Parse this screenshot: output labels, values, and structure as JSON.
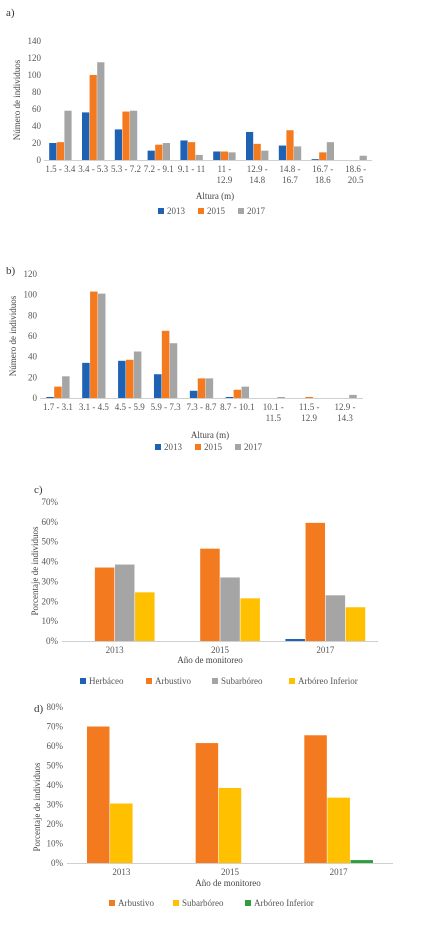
{
  "chart_data": [
    {
      "panel": "a)",
      "type": "bar",
      "ylabel": "Número de individuos",
      "xlabel": "Altura (m)",
      "ylim": [
        0,
        140
      ],
      "yticks": [
        0,
        20,
        40,
        60,
        80,
        100,
        120,
        140
      ],
      "categories": [
        "1.5 - 3.4",
        "3.4 - 5.3",
        "5.3 - 7.2",
        "7.2 - 9.1",
        "9.1 - 11",
        "11 - 12.9",
        "12.9 - 14.8",
        "14.8 - 16.7",
        "16.7 - 18.6",
        "18.6 - 20.5"
      ],
      "series": [
        {
          "name": "2013",
          "color": "#1f62b4",
          "values": [
            20,
            56,
            36,
            11,
            23,
            10,
            33,
            17,
            1,
            0
          ]
        },
        {
          "name": "2015",
          "color": "#f47a20",
          "values": [
            21,
            100,
            57,
            18,
            21,
            10,
            19,
            35,
            9,
            0
          ]
        },
        {
          "name": "2017",
          "color": "#a5a5a5",
          "values": [
            58,
            115,
            58,
            20,
            6,
            9,
            11,
            16,
            21,
            5
          ]
        }
      ]
    },
    {
      "panel": "b)",
      "type": "bar",
      "ylabel": "Número de individuos",
      "xlabel": "Altura (m)",
      "ylim": [
        0,
        120
      ],
      "yticks": [
        0,
        20,
        40,
        60,
        80,
        100,
        120
      ],
      "categories": [
        "1.7 - 3.1",
        "3.1 - 4.5",
        "4.5 - 5.9",
        "5.9 - 7.3",
        "7.3 - 8.7",
        "8.7 - 10.1",
        "10.1 - 11.5",
        "11.5 - 12.9",
        "12.9 - 14.3"
      ],
      "series": [
        {
          "name": "2013",
          "color": "#1f62b4",
          "values": [
            1,
            34,
            36,
            23,
            7,
            1,
            0,
            0,
            0
          ]
        },
        {
          "name": "2015",
          "color": "#f47a20",
          "values": [
            11,
            103,
            37,
            65,
            19,
            8,
            0,
            1,
            0
          ]
        },
        {
          "name": "2017",
          "color": "#a5a5a5",
          "values": [
            21,
            101,
            45,
            53,
            19,
            11,
            1,
            0,
            3
          ]
        }
      ]
    },
    {
      "panel": "c)",
      "type": "bar",
      "ylabel": "Porcentaje de individuos",
      "xlabel": "Año de monitoreo",
      "ylim": [
        0,
        70
      ],
      "yticks": [
        "0%",
        "10%",
        "20%",
        "30%",
        "40%",
        "50%",
        "60%",
        "70%"
      ],
      "categories": [
        "2013",
        "2015",
        "2017"
      ],
      "series": [
        {
          "name": "Herbáceo",
          "color": "#1f62b4",
          "values": [
            0,
            0,
            1
          ]
        },
        {
          "name": "Arbustivo",
          "color": "#f47a20",
          "values": [
            37,
            46.5,
            59.5
          ]
        },
        {
          "name": "Subarbóreo",
          "color": "#a5a5a5",
          "values": [
            38.5,
            32,
            23
          ]
        },
        {
          "name": "Arbóreo Inferior",
          "color": "#ffc000",
          "values": [
            24.5,
            21.5,
            17
          ]
        }
      ]
    },
    {
      "panel": "d)",
      "type": "bar",
      "ylabel": "Porcentaje de individuos",
      "xlabel": "Año de monitoreo",
      "ylim": [
        0,
        80
      ],
      "yticks": [
        "0%",
        "10%",
        "20%",
        "30%",
        "40%",
        "50%",
        "60%",
        "70%",
        "80%"
      ],
      "categories": [
        "2013",
        "2015",
        "2017"
      ],
      "series": [
        {
          "name": "Arbustivo",
          "color": "#f47a20",
          "values": [
            70,
            61.5,
            65.5
          ]
        },
        {
          "name": "Subarbóreo",
          "color": "#ffc000",
          "values": [
            30.5,
            38.5,
            33.5
          ]
        },
        {
          "name": "Arbóreo Inferior",
          "color": "#2e9e3e",
          "values": [
            0,
            0,
            1.5
          ]
        }
      ]
    }
  ]
}
